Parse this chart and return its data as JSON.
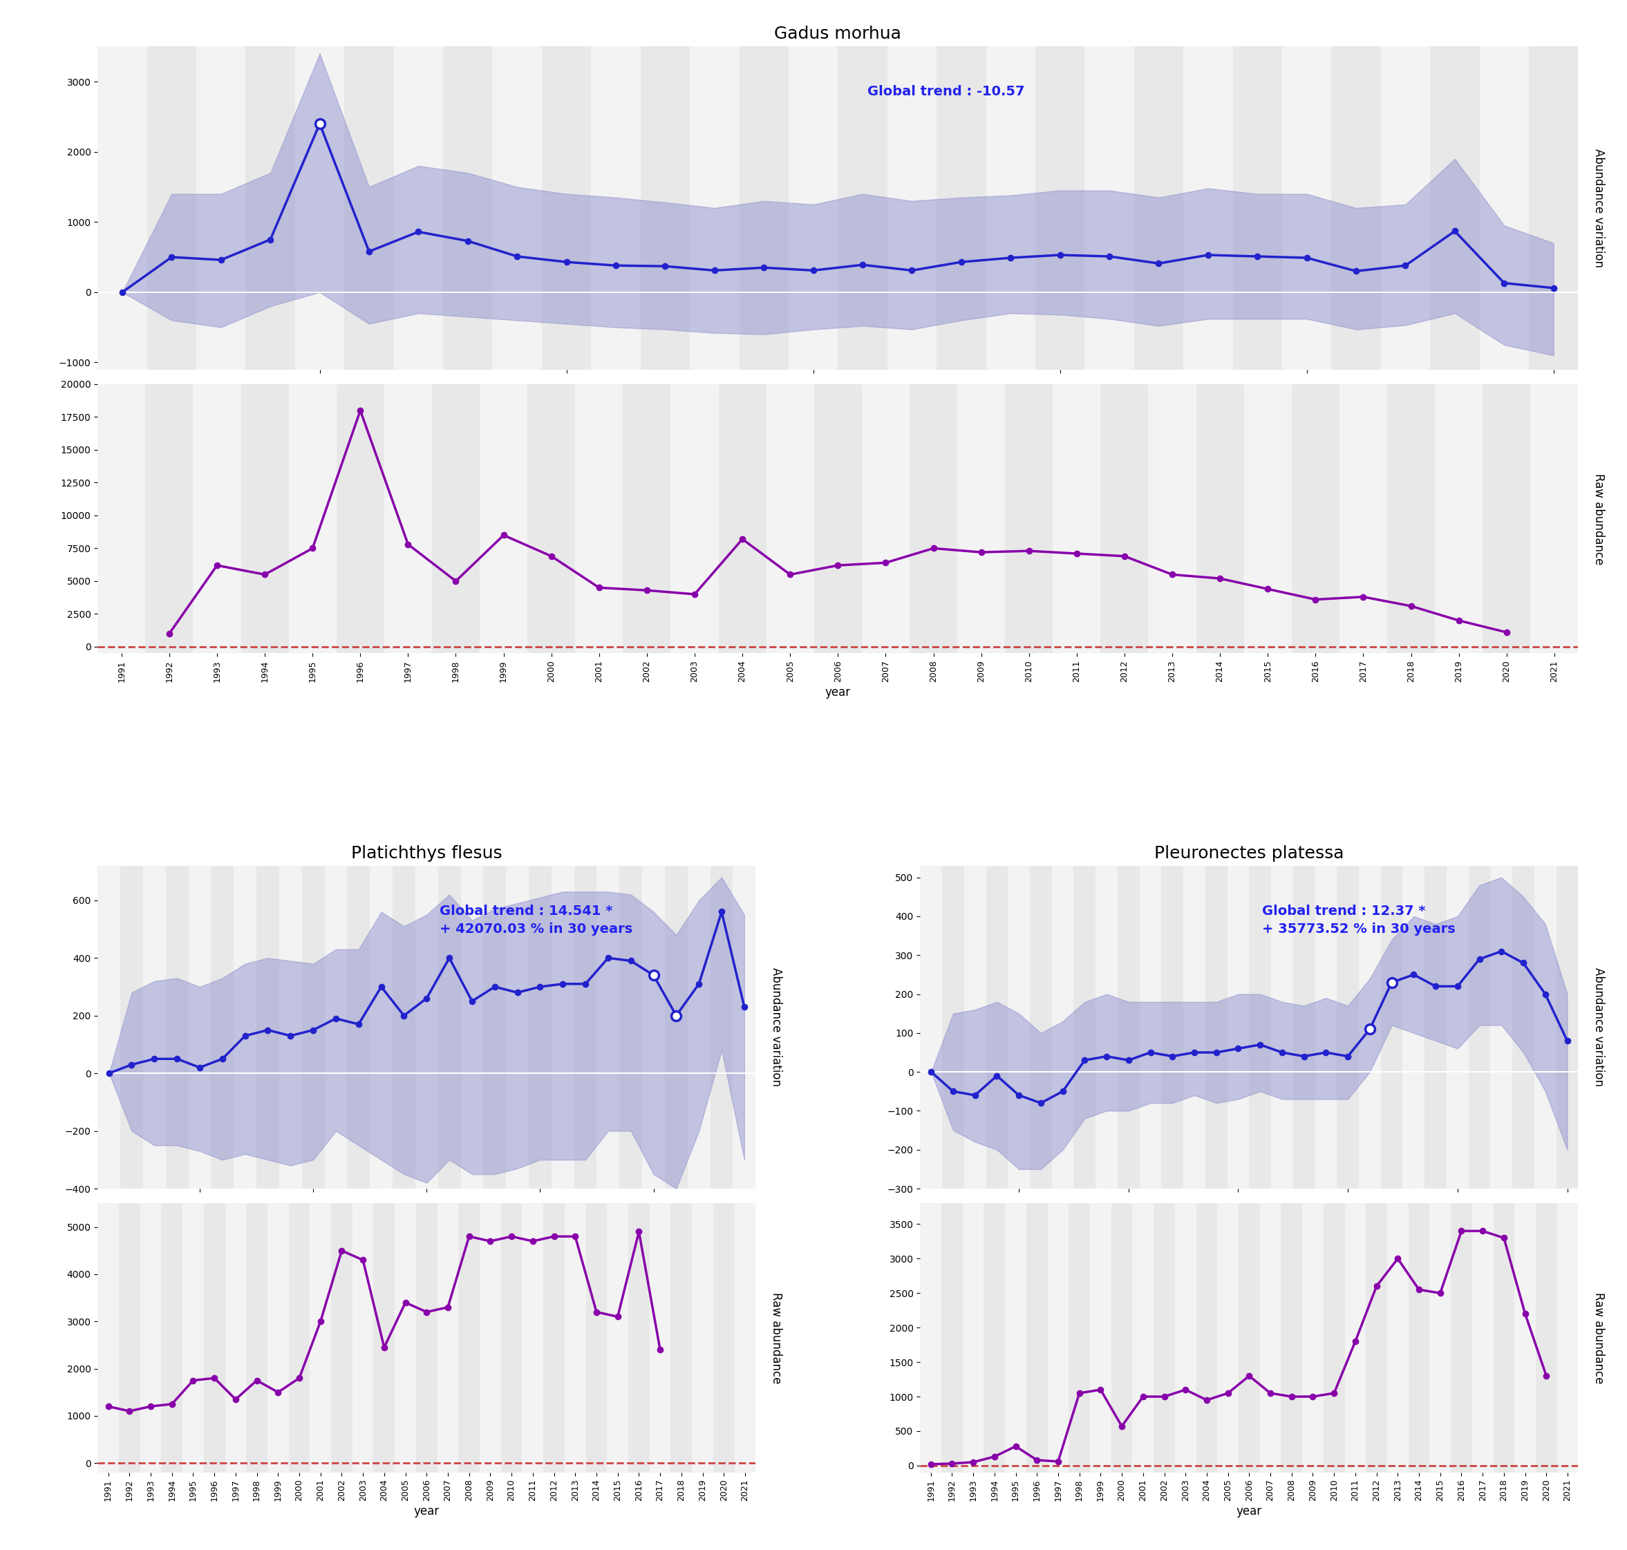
{
  "years": [
    1991,
    1992,
    1993,
    1994,
    1995,
    1996,
    1997,
    1998,
    1999,
    2000,
    2001,
    2002,
    2003,
    2004,
    2005,
    2006,
    2007,
    2008,
    2009,
    2010,
    2011,
    2012,
    2013,
    2014,
    2015,
    2016,
    2017,
    2018,
    2019,
    2020,
    2021
  ],
  "gadus_abund": [
    0,
    500,
    460,
    750,
    2400,
    580,
    860,
    730,
    510,
    430,
    380,
    370,
    310,
    350,
    310,
    390,
    310,
    430,
    490,
    530,
    510,
    410,
    530,
    510,
    490,
    300,
    380,
    870,
    130,
    60,
    null
  ],
  "gadus_abund_lo": [
    0,
    -400,
    -500,
    -200,
    0,
    -450,
    -300,
    -350,
    -400,
    -450,
    -500,
    -530,
    -580,
    -600,
    -530,
    -480,
    -530,
    -400,
    -300,
    -320,
    -380,
    -480,
    -380,
    -380,
    -380,
    -530,
    -470,
    -300,
    -750,
    -900,
    null
  ],
  "gadus_abund_hi": [
    0,
    1400,
    1400,
    1700,
    3400,
    1500,
    1800,
    1700,
    1500,
    1400,
    1350,
    1280,
    1200,
    1300,
    1250,
    1400,
    1300,
    1350,
    1380,
    1450,
    1450,
    1350,
    1480,
    1400,
    1400,
    1200,
    1250,
    1900,
    950,
    700,
    null
  ],
  "gadus_open": [
    false,
    false,
    false,
    false,
    true,
    false,
    false,
    false,
    false,
    false,
    false,
    false,
    false,
    false,
    false,
    false,
    false,
    false,
    false,
    false,
    false,
    false,
    false,
    false,
    false,
    false,
    false,
    false,
    false,
    false,
    false
  ],
  "gadus_raw": [
    null,
    1000,
    6200,
    5500,
    7500,
    18000,
    7800,
    5000,
    8500,
    6900,
    4500,
    4300,
    4000,
    8200,
    5500,
    6200,
    6400,
    7500,
    7200,
    7300,
    7100,
    6900,
    5500,
    5200,
    4400,
    3600,
    3800,
    3100,
    2000,
    1100,
    null
  ],
  "gadus_trend": -10.57,
  "gadus_trend_text": "Global trend : -10.57",
  "platichthys_abund": [
    0,
    30,
    50,
    50,
    20,
    50,
    130,
    150,
    130,
    150,
    190,
    170,
    300,
    200,
    260,
    400,
    250,
    300,
    280,
    300,
    310,
    310,
    400,
    390,
    340,
    200,
    310,
    560,
    230,
    null,
    null
  ],
  "platichthys_abund_lo": [
    0,
    -200,
    -250,
    -250,
    -270,
    -300,
    -280,
    -300,
    -320,
    -300,
    -200,
    -250,
    -300,
    -350,
    -380,
    -300,
    -350,
    -350,
    -330,
    -300,
    -300,
    -300,
    -200,
    -200,
    -350,
    -400,
    -200,
    80,
    -300,
    null,
    null
  ],
  "platichthys_abund_hi": [
    0,
    280,
    320,
    330,
    300,
    330,
    380,
    400,
    390,
    380,
    430,
    430,
    560,
    510,
    550,
    620,
    530,
    570,
    590,
    610,
    630,
    630,
    630,
    620,
    560,
    480,
    600,
    680,
    550,
    null,
    null
  ],
  "platichthys_open": [
    false,
    false,
    false,
    false,
    false,
    false,
    false,
    false,
    false,
    false,
    false,
    false,
    false,
    false,
    false,
    false,
    false,
    false,
    false,
    false,
    false,
    false,
    false,
    false,
    true,
    true,
    false,
    false,
    false,
    false,
    false
  ],
  "platichthys_raw": [
    1200,
    1100,
    1200,
    1250,
    1750,
    1800,
    1350,
    1750,
    1500,
    1800,
    3000,
    4500,
    4300,
    2450,
    3400,
    3200,
    3300,
    4800,
    4700,
    4800,
    4700,
    4800,
    4800,
    3200,
    3100,
    4900,
    2400,
    null,
    null,
    null,
    null
  ],
  "platichthys_trend": 14.541,
  "platichthys_trend_text": "Global trend : 14.541 *\n+ 42070.03 % in 30 years",
  "pleuronectes_abund": [
    0,
    -50,
    -60,
    -10,
    -60,
    -80,
    -50,
    30,
    40,
    30,
    50,
    40,
    50,
    50,
    60,
    70,
    50,
    40,
    50,
    40,
    110,
    230,
    250,
    220,
    220,
    290,
    310,
    280,
    200,
    80,
    null
  ],
  "pleuronectes_abund_lo": [
    0,
    -150,
    -180,
    -200,
    -250,
    -250,
    -200,
    -120,
    -100,
    -100,
    -80,
    -80,
    -60,
    -80,
    -70,
    -50,
    -70,
    -70,
    -70,
    -70,
    0,
    120,
    100,
    80,
    60,
    120,
    120,
    50,
    -50,
    -200,
    null
  ],
  "pleuronectes_abund_hi": [
    0,
    150,
    160,
    180,
    150,
    100,
    130,
    180,
    200,
    180,
    180,
    180,
    180,
    180,
    200,
    200,
    180,
    170,
    190,
    170,
    240,
    340,
    400,
    380,
    400,
    480,
    500,
    450,
    380,
    200,
    null
  ],
  "pleuronectes_open": [
    false,
    false,
    false,
    false,
    false,
    false,
    false,
    false,
    false,
    false,
    false,
    false,
    false,
    false,
    false,
    false,
    false,
    false,
    false,
    false,
    true,
    true,
    false,
    false,
    false,
    false,
    false,
    false,
    false,
    false,
    false
  ],
  "pleuronectes_raw": [
    20,
    30,
    50,
    130,
    280,
    80,
    60,
    1050,
    1100,
    570,
    1000,
    1000,
    1100,
    950,
    1050,
    1300,
    1050,
    1000,
    1000,
    1050,
    1800,
    2600,
    3000,
    2550,
    2500,
    3400,
    3400,
    3300,
    2200,
    1300,
    null
  ],
  "pleuronectes_trend": 12.37,
  "pleuronectes_trend_text": "Global trend : 12.37 *\n+ 35773.52 % in 30 years",
  "plot_bg": "#e8e8e8",
  "strip_bg": "#d8d8d8",
  "line_blue": "#2222cc",
  "fill_blue": "#8888cc",
  "line_purple": "#8800aa",
  "dot_open_color": "white",
  "dot_edge_blue": "#2222cc",
  "trend_color": "#2222ee",
  "dashed_color": "#cc4444"
}
